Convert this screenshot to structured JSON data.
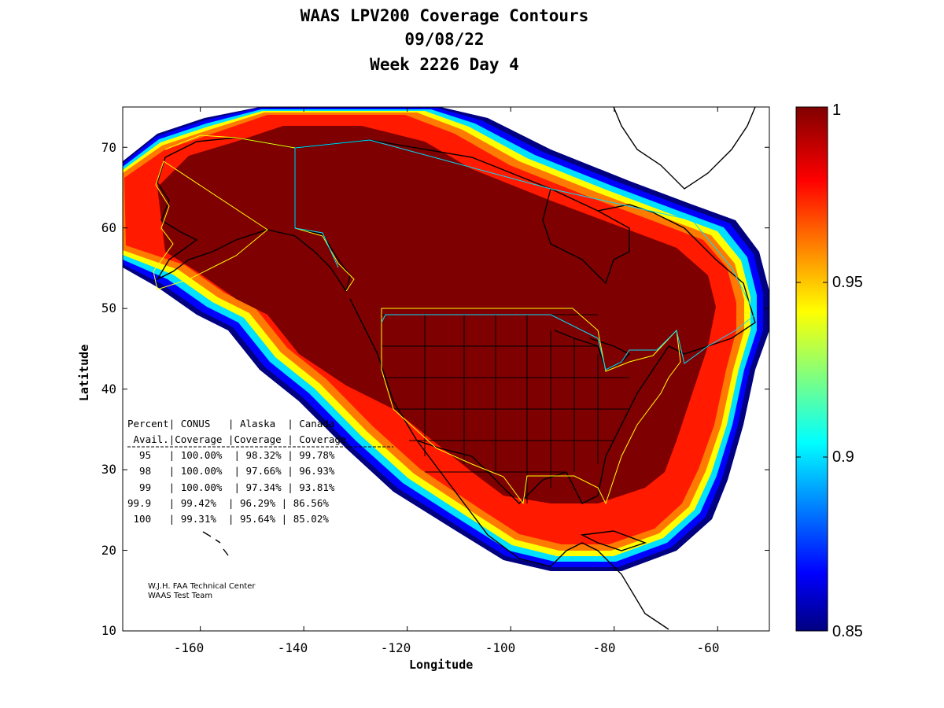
{
  "title": {
    "line1": "WAAS LPV200 Coverage Contours",
    "line2": "09/08/22",
    "line3": "Week 2226 Day 4"
  },
  "axes": {
    "xlabel": "Longitude",
    "ylabel": "Latitude",
    "x_ticks": [
      "-160",
      "-140",
      "-120",
      "-100",
      "-80",
      "-60"
    ],
    "y_ticks": [
      "10",
      "20",
      "30",
      "40",
      "50",
      "60",
      "70"
    ],
    "xlim": [
      -175,
      -50
    ],
    "ylim": [
      10,
      75
    ]
  },
  "colorbar": {
    "ticks": [
      "1",
      "0.95",
      "0.9",
      "0.85"
    ],
    "range": [
      0.85,
      1
    ],
    "colormap": "jet"
  },
  "coverage_table": {
    "header1": "Percent| CONUS   | Alaska  | Canada",
    "header2": " Avail.|Coverage |Coverage | Coverage",
    "rows": [
      "  95   | 100.00%  | 98.32% | 99.78%",
      "  98   | 100.00%  | 97.66% | 96.93%",
      "  99   | 100.00%  | 97.34% | 93.81%",
      "99.9   | 99.42%  | 96.29% | 86.56%",
      " 100   | 99.31%  | 95.64% | 85.02%"
    ]
  },
  "credit": {
    "line1": "W.J.H. FAA Technical Center",
    "line2": "WAAS Test Team"
  },
  "colors": {
    "dark_red": "#800000",
    "red": "#ff0000",
    "orange": "#ff8000",
    "yellow": "#ffff00",
    "cyan": "#00ffff",
    "blue": "#0000ff",
    "navy": "#000080",
    "service_volume_conus": "#ffff00",
    "service_volume_canada": "#00ffff"
  },
  "chart_data": {
    "type": "heatmap",
    "title": "WAAS LPV200 Coverage Contours 09/08/22 Week 2226 Day 4",
    "xlabel": "Longitude",
    "ylabel": "Latitude",
    "xlim": [
      -175,
      -50
    ],
    "ylim": [
      10,
      75
    ],
    "color_range": [
      0.85,
      1
    ],
    "series": [
      {
        "name": "Percent Avail. 95",
        "values": {
          "CONUS": 100.0,
          "Alaska": 98.32,
          "Canada": 99.78
        }
      },
      {
        "name": "Percent Avail. 98",
        "values": {
          "CONUS": 100.0,
          "Alaska": 97.66,
          "Canada": 96.93
        }
      },
      {
        "name": "Percent Avail. 99",
        "values": {
          "CONUS": 100.0,
          "Alaska": 97.34,
          "Canada": 93.81
        }
      },
      {
        "name": "Percent Avail. 99.9",
        "values": {
          "CONUS": 99.42,
          "Alaska": 96.29,
          "Canada": 86.56
        }
      },
      {
        "name": "Percent Avail. 100",
        "values": {
          "CONUS": 99.31,
          "Alaska": 95.64,
          "Canada": 85.02
        }
      }
    ]
  }
}
